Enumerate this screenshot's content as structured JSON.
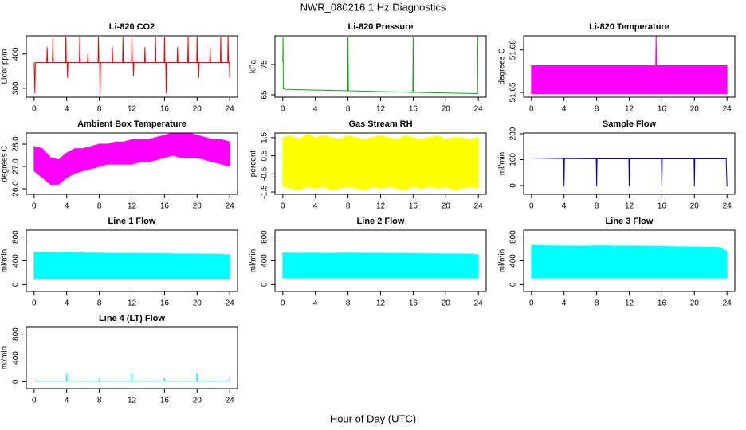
{
  "title": "NWR_080216  1 Hz Diagnostics",
  "xlabel": "Hour of Day (UTC)",
  "chart_data": [
    {
      "type": "line",
      "title": "Li-820 CO2",
      "ylabel": "Licor ppm",
      "color": "#ff0000",
      "xlim": [
        -0.96,
        24.96
      ],
      "xticks": [
        0,
        4,
        8,
        12,
        16,
        20,
        24
      ],
      "ylim": [
        274,
        453
      ],
      "yticks": [
        300,
        400
      ],
      "x": [
        0,
        0.1,
        0.15,
        1.55,
        1.6,
        1.65,
        2.25,
        2.3,
        2.35,
        3.85,
        3.9,
        3.95,
        4.05,
        4.1,
        4.15,
        5.55,
        5.6,
        5.65,
        6.55,
        6.6,
        6.65,
        7.85,
        7.9,
        7.95,
        8.05,
        8.1,
        8.15,
        9.55,
        9.6,
        9.65,
        10.85,
        10.9,
        10.95,
        11.95,
        12.0,
        12.05,
        12.15,
        12.2,
        12.25,
        13.55,
        13.6,
        13.65,
        14.85,
        14.9,
        14.95,
        15.95,
        16.0,
        16.05,
        16.15,
        16.2,
        16.25,
        17.55,
        17.6,
        17.65,
        18.85,
        18.9,
        18.95,
        19.95,
        20.0,
        20.05,
        20.15,
        20.2,
        20.25,
        21.55,
        21.6,
        21.65,
        22.85,
        22.9,
        22.95,
        23.75,
        23.8,
        23.85,
        23.95,
        24.0
      ],
      "values": [
        375,
        285,
        375,
        375,
        420,
        375,
        375,
        450,
        375,
        375,
        450,
        375,
        375,
        330,
        375,
        375,
        450,
        375,
        375,
        400,
        375,
        375,
        450,
        375,
        375,
        280,
        375,
        375,
        420,
        375,
        375,
        450,
        375,
        375,
        450,
        375,
        375,
        335,
        375,
        375,
        420,
        375,
        375,
        450,
        375,
        375,
        450,
        375,
        375,
        285,
        375,
        375,
        420,
        375,
        375,
        450,
        375,
        375,
        450,
        375,
        375,
        330,
        375,
        375,
        420,
        375,
        375,
        450,
        375,
        375,
        450,
        375,
        375,
        330
      ]
    },
    {
      "type": "line",
      "title": "Li-820 Pressure",
      "ylabel": "kPa",
      "color": "#00b000",
      "xlim": [
        -0.96,
        24.96
      ],
      "xticks": [
        0,
        4,
        8,
        12,
        16,
        20,
        24
      ],
      "ylim": [
        64.2,
        84.5
      ],
      "yticks": [
        65,
        75
      ],
      "x": [
        0,
        0.03,
        0.06,
        0.3,
        7.95,
        8.0,
        8.05,
        15.95,
        16.0,
        16.05,
        23.9,
        23.95,
        24.0
      ],
      "values": [
        76,
        84,
        67,
        66.8,
        66.3,
        84,
        66.3,
        65.8,
        84,
        65.8,
        65.4,
        84,
        84
      ]
    },
    {
      "type": "band",
      "title": "Li-820 Temperature",
      "ylabel": "degrees C",
      "color": "#ff00ff",
      "xlim": [
        -0.96,
        24.96
      ],
      "xticks": [
        0,
        4,
        8,
        12,
        16,
        20,
        24
      ],
      "ylim": [
        51.6466,
        51.69
      ],
      "yticks": [
        51.65,
        51.68
      ],
      "x": [
        0,
        15.25,
        15.3,
        15.35,
        24
      ],
      "upper": [
        51.669,
        51.669,
        51.69,
        51.669,
        51.669
      ],
      "lower": [
        51.649,
        51.649,
        51.649,
        51.649,
        51.649
      ]
    },
    {
      "type": "band",
      "title": "Ambient Box Temperature",
      "ylabel": "degrees C",
      "color": "#ff00ff",
      "xlim": [
        -0.96,
        24.96
      ],
      "xticks": [
        0,
        4,
        8,
        12,
        16,
        20,
        24
      ],
      "ylim": [
        25.75,
        28.5
      ],
      "yticks": [
        {
          "value": 26,
          "label": "26.0"
        },
        {
          "value": 27,
          "label": "27.0"
        },
        {
          "value": 28,
          "label": "28.0"
        }
      ],
      "x": [
        0,
        1,
        2,
        3,
        4,
        5,
        6,
        7,
        8,
        9,
        10,
        11,
        12,
        13,
        14,
        15,
        16,
        17,
        18,
        19,
        20,
        21,
        22,
        23,
        24
      ],
      "upper": [
        27.9,
        27.8,
        27.4,
        27.3,
        27.6,
        27.8,
        27.8,
        27.9,
        28.0,
        28.0,
        28.1,
        28.1,
        28.2,
        28.2,
        28.2,
        28.3,
        28.4,
        28.5,
        28.5,
        28.5,
        28.4,
        28.3,
        28.2,
        28.2,
        28.1
      ],
      "lower": [
        26.8,
        26.5,
        26.2,
        26.2,
        26.5,
        26.7,
        26.8,
        26.9,
        27.0,
        27.1,
        27.1,
        27.1,
        27.1,
        27.2,
        27.2,
        27.3,
        27.4,
        27.5,
        27.4,
        27.4,
        27.4,
        27.3,
        27.2,
        27.1,
        27.0
      ]
    },
    {
      "type": "band",
      "title": "Gas Stream RH",
      "ylabel": "percent",
      "color": "#ffff00",
      "xlim": [
        -0.96,
        24.96
      ],
      "xticks": [
        0,
        4,
        8,
        12,
        16,
        20,
        24
      ],
      "ylim": [
        -1.63,
        1.76
      ],
      "yticks": [
        -1.5,
        -0.5,
        0.5,
        1.5
      ],
      "x": [
        0,
        1,
        2,
        3,
        4,
        5,
        6,
        7,
        8,
        9,
        10,
        11,
        12,
        13,
        14,
        15,
        16,
        17,
        18,
        19,
        20,
        21,
        22,
        23,
        24
      ],
      "upper": [
        1.5,
        1.6,
        1.4,
        1.7,
        1.5,
        1.6,
        1.5,
        1.4,
        1.6,
        1.5,
        1.4,
        1.5,
        1.6,
        1.5,
        1.4,
        1.6,
        1.5,
        1.4,
        1.5,
        1.6,
        1.4,
        1.5,
        1.5,
        1.4,
        1.5
      ],
      "lower": [
        -1.2,
        -1.3,
        -1.4,
        -1.2,
        -1.3,
        -1.2,
        -1.4,
        -1.3,
        -1.2,
        -1.3,
        -1.4,
        -1.2,
        -1.3,
        -1.2,
        -1.3,
        -1.4,
        -1.2,
        -1.3,
        -1.2,
        -1.3,
        -1.2,
        -1.4,
        -1.3,
        -1.2,
        -1.3
      ]
    },
    {
      "type": "line",
      "title": "Sample Flow",
      "ylabel": "ml/min",
      "color": "#0000dd",
      "xlim": [
        -0.96,
        24.96
      ],
      "xticks": [
        0,
        4,
        8,
        12,
        16,
        20,
        24
      ],
      "ylim": [
        -34,
        203
      ],
      "yticks": [
        0,
        100,
        200
      ],
      "x": [
        0,
        3.95,
        4.0,
        4.05,
        7.95,
        8.0,
        8.05,
        11.95,
        12.0,
        12.05,
        15.95,
        16.0,
        16.05,
        19.95,
        20.0,
        20.05,
        23.9,
        24.0
      ],
      "values": [
        106,
        104,
        -3,
        104,
        103,
        -3,
        103,
        103,
        -3,
        103,
        103,
        -3,
        103,
        103,
        -3,
        103,
        103,
        -3
      ]
    },
    {
      "type": "band",
      "title": "Line 1 Flow",
      "ylabel": "ml/min",
      "color": "#00ffff",
      "xlim": [
        -0.96,
        24.96
      ],
      "xticks": [
        0,
        4,
        8,
        12,
        16,
        20,
        24
      ],
      "ylim": [
        -115,
        915
      ],
      "yticks": [
        0,
        400,
        800
      ],
      "x": [
        0,
        1,
        2,
        3,
        4,
        5,
        6,
        7,
        8,
        9,
        10,
        11,
        12,
        13,
        14,
        15,
        16,
        17,
        18,
        19,
        20,
        21,
        22,
        23,
        24
      ],
      "upper": [
        540,
        538,
        537,
        535,
        545,
        535,
        532,
        530,
        528,
        527,
        525,
        524,
        523,
        522,
        521,
        520,
        518,
        516,
        515,
        513,
        512,
        510,
        508,
        505,
        500
      ],
      "lower": [
        100,
        100,
        100,
        100,
        100,
        100,
        100,
        100,
        100,
        100,
        100,
        100,
        100,
        100,
        100,
        100,
        100,
        100,
        100,
        100,
        100,
        100,
        100,
        100,
        100
      ]
    },
    {
      "type": "band",
      "title": "Line 2 Flow",
      "ylabel": "ml/min",
      "color": "#00ffff",
      "xlim": [
        -0.96,
        24.96
      ],
      "xticks": [
        0,
        4,
        8,
        12,
        16,
        20,
        24
      ],
      "ylim": [
        -115,
        915
      ],
      "yticks": [
        0,
        400,
        800
      ],
      "x": [
        0,
        1,
        2,
        3,
        4,
        5,
        6,
        7,
        8,
        9,
        10,
        11,
        12,
        13,
        14,
        15,
        16,
        17,
        18,
        19,
        20,
        21,
        22,
        23,
        24
      ],
      "upper": [
        530,
        528,
        527,
        530,
        528,
        527,
        526,
        528,
        530,
        528,
        527,
        526,
        525,
        524,
        523,
        522,
        520,
        518,
        517,
        516,
        515,
        514,
        513,
        512,
        500
      ],
      "lower": [
        110,
        110,
        110,
        110,
        110,
        110,
        110,
        110,
        110,
        110,
        110,
        110,
        110,
        110,
        110,
        110,
        110,
        110,
        110,
        110,
        110,
        110,
        110,
        110,
        110
      ]
    },
    {
      "type": "band",
      "title": "Line 3 Flow",
      "ylabel": "ml/min",
      "color": "#00ffff",
      "xlim": [
        -0.96,
        24.96
      ],
      "xticks": [
        0,
        4,
        8,
        12,
        16,
        20,
        24
      ],
      "ylim": [
        -115,
        915
      ],
      "yticks": [
        0,
        400,
        800
      ],
      "x": [
        0,
        1,
        2,
        3,
        4,
        5,
        6,
        7,
        8,
        9,
        10,
        11,
        12,
        13,
        14,
        15,
        16,
        17,
        18,
        19,
        20,
        21,
        22,
        23,
        24
      ],
      "upper": [
        660,
        655,
        650,
        650,
        648,
        646,
        645,
        648,
        650,
        652,
        648,
        646,
        645,
        644,
        643,
        642,
        640,
        638,
        636,
        634,
        632,
        630,
        628,
        626,
        560
      ],
      "lower": [
        110,
        110,
        110,
        110,
        110,
        110,
        110,
        110,
        110,
        110,
        110,
        110,
        110,
        110,
        110,
        110,
        110,
        110,
        110,
        110,
        110,
        110,
        110,
        110,
        110
      ]
    },
    {
      "type": "line",
      "title": "Line 4 (LT) Flow",
      "ylabel": "ml/min",
      "color": "#00ffff",
      "xlim": [
        -0.96,
        24.96
      ],
      "xticks": [
        0,
        4,
        8,
        12,
        16,
        20,
        24
      ],
      "ylim": [
        -115,
        915
      ],
      "yticks": [
        0,
        400,
        800
      ],
      "x": [
        0,
        3.95,
        4.0,
        4.05,
        7.95,
        8.0,
        8.05,
        11.95,
        12.0,
        12.05,
        15.95,
        16.0,
        16.05,
        19.95,
        20.0,
        20.05,
        23.95,
        24.0
      ],
      "values": [
        10,
        10,
        150,
        10,
        10,
        60,
        10,
        10,
        150,
        10,
        10,
        60,
        10,
        10,
        150,
        10,
        10,
        70
      ]
    }
  ]
}
